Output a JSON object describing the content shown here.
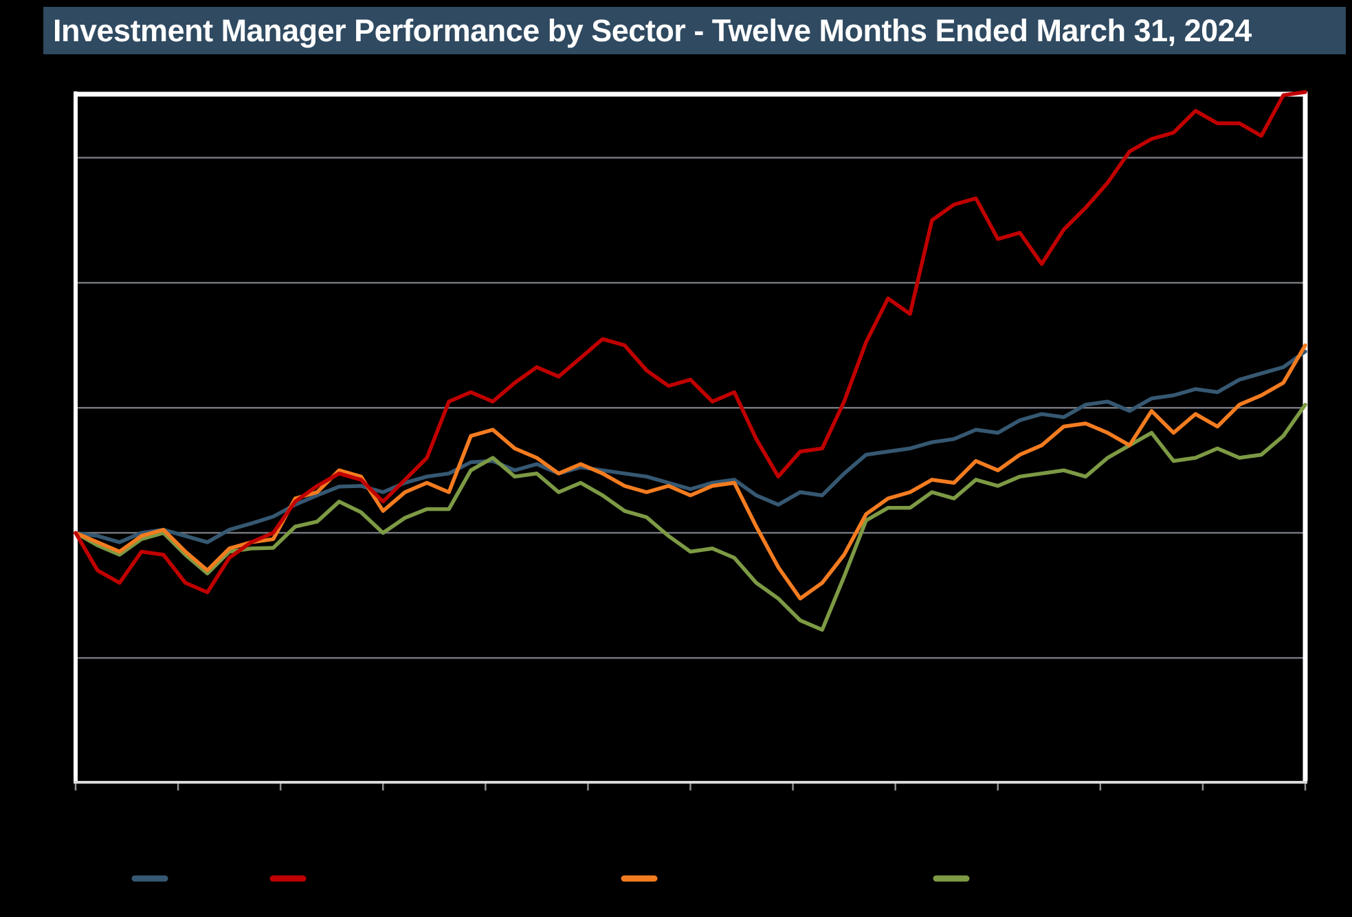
{
  "header": {
    "title": "Investment Manager Performance by Sector - Twelve Months Ended March 31, 2024",
    "bg_color": "#2f4a61",
    "text_color": "#ffffff"
  },
  "colors": {
    "page_background": "#000000",
    "plot_background": "#000000",
    "gridline": "#74787e",
    "spine": "#ffffff",
    "bottom_axis": "#d9d9d9",
    "tick": "#8f8f8f"
  },
  "chart_data": {
    "type": "line",
    "title": "Investment Manager Performance by Sector - Twelve Months Ended March 31, 2024",
    "xlabel": "",
    "ylabel": "",
    "x_axis": {
      "tick_count": 13,
      "tick_labels_visible": false,
      "period_from_title": "Twelve Months Ended March 31, 2024"
    },
    "y_axis": {
      "min": -40,
      "max": 70.6,
      "gridline_step": 20,
      "gridline_values": [
        60,
        40,
        20,
        0,
        -20
      ],
      "tick_labels_visible": false,
      "values_are_estimates": true
    },
    "grid": "horizontal-only",
    "legend": {
      "position": "bottom",
      "labels_visible": false,
      "items": [
        {
          "key": "navy",
          "color": "#365872"
        },
        {
          "key": "red",
          "color": "#c00000"
        },
        {
          "key": "orange",
          "color": "#f47c20"
        },
        {
          "key": "olive",
          "color": "#7d9a44"
        }
      ]
    },
    "series": [
      {
        "name": "navy-series",
        "color": "#365872",
        "values": [
          0,
          -0.5,
          -1.5,
          0,
          0.5,
          -0.5,
          -1.5,
          0.5,
          1.5,
          2.6,
          4.5,
          6,
          7.4,
          7.5,
          6.5,
          8,
          9,
          9.5,
          11.3,
          11.5,
          10,
          11,
          9.5,
          10.5,
          10,
          9.5,
          9,
          8,
          7,
          8,
          8.5,
          6,
          4.5,
          6.5,
          6,
          9.5,
          12.5,
          13,
          13.5,
          14.5,
          15,
          16.5,
          16,
          18,
          19,
          18.5,
          20.5,
          21,
          19.5,
          21.5,
          22,
          23,
          22.5,
          24.5,
          25.5,
          26.5,
          29
        ]
      },
      {
        "name": "red-series",
        "color": "#c00000",
        "values": [
          0,
          -6,
          -8,
          -3,
          -3.5,
          -8,
          -9.5,
          -4,
          -1.5,
          0,
          5,
          7.5,
          9.5,
          8.5,
          5,
          8.5,
          12,
          21,
          22.5,
          21,
          24,
          26.5,
          25,
          28,
          31,
          30,
          26,
          23.5,
          24.5,
          21,
          22.5,
          15,
          9,
          13,
          13.5,
          21,
          30.5,
          37.5,
          35,
          50,
          52.5,
          53.5,
          47,
          48,
          43,
          48.5,
          52,
          56,
          61,
          63,
          64,
          67.5,
          65.5,
          65.5,
          63.5,
          70,
          70.5
        ]
      },
      {
        "name": "orange-series",
        "color": "#f47c20",
        "values": [
          0,
          -1.5,
          -3,
          -0.5,
          0.5,
          -3,
          -6,
          -2.5,
          -1.5,
          -1,
          5.5,
          6.5,
          10,
          9,
          3.5,
          6.5,
          8,
          6.5,
          15.5,
          16.5,
          13.5,
          12,
          9.5,
          11,
          9.5,
          7.5,
          6.5,
          7.5,
          6,
          7.5,
          8,
          1,
          -5.5,
          -10.5,
          -8,
          -3.5,
          3,
          5.5,
          6.5,
          8.5,
          8,
          11.5,
          10,
          12.5,
          14,
          17,
          17.5,
          16,
          14,
          19.5,
          16,
          19,
          17,
          20.5,
          22,
          24,
          30
        ]
      },
      {
        "name": "olive-series",
        "color": "#7d9a44",
        "values": [
          0,
          -2,
          -3.5,
          -1,
          0,
          -3.5,
          -6.5,
          -3,
          -2.5,
          -2.4,
          1,
          1.8,
          5,
          3.3,
          0,
          2.4,
          3.8,
          3.8,
          10,
          12,
          9,
          9.5,
          6.5,
          8,
          6,
          3.5,
          2.5,
          -0.5,
          -3,
          -2.5,
          -4,
          -8,
          -10.5,
          -14,
          -15.5,
          -7,
          2,
          4,
          4,
          6.5,
          5.5,
          8.5,
          7.5,
          9,
          9.5,
          10,
          9,
          12,
          14,
          16,
          11.5,
          12,
          13.5,
          12,
          12.5,
          15.5,
          20.5
        ]
      }
    ]
  }
}
